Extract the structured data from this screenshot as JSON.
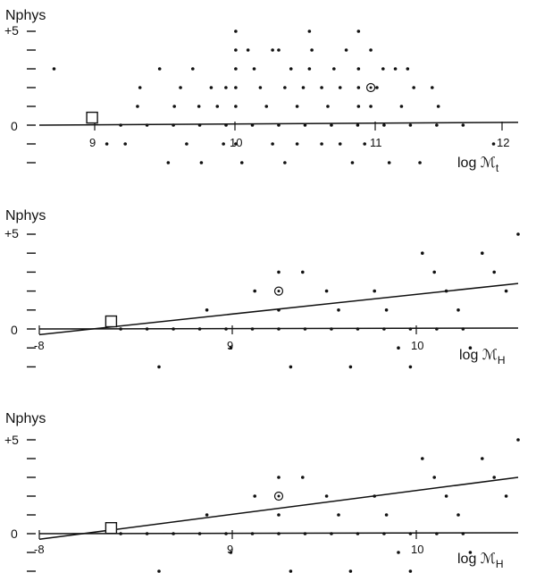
{
  "chart_data": [
    {
      "type": "scatter",
      "title": "",
      "ylabel": "Nphys",
      "xlabel": "log ℳ",
      "xlabel_sub": "t",
      "xlim": [
        8.4,
        12.3
      ],
      "ylim": [
        -2,
        5.5
      ],
      "y_ticks": [
        -2,
        -1,
        0,
        1,
        2,
        3,
        4,
        5
      ],
      "y_tick_labels": [
        "0",
        "+5"
      ],
      "x_tick_labels": [
        "9",
        "10",
        "11",
        "12"
      ],
      "grid": false,
      "fit_lines": [
        {
          "x": [
            8.4,
            12.3
          ],
          "y": [
            0,
            0.15
          ]
        }
      ],
      "points": [
        [
          8.52,
          3
        ],
        [
          8.95,
          -1
        ],
        [
          9.1,
          -1
        ],
        [
          9.22,
          2
        ],
        [
          9.2,
          1
        ],
        [
          9.38,
          3
        ],
        [
          9.45,
          -2
        ],
        [
          9.5,
          1
        ],
        [
          9.55,
          2
        ],
        [
          9.6,
          -1
        ],
        [
          9.65,
          3
        ],
        [
          9.7,
          1
        ],
        [
          9.72,
          -2
        ],
        [
          9.8,
          2
        ],
        [
          9.85,
          1
        ],
        [
          9.9,
          -1
        ],
        [
          9.92,
          2
        ],
        [
          10,
          5
        ],
        [
          10,
          4
        ],
        [
          10,
          3
        ],
        [
          10,
          2
        ],
        [
          10,
          1
        ],
        [
          10,
          -1
        ],
        [
          10.05,
          -2
        ],
        [
          10.1,
          4
        ],
        [
          10.15,
          3
        ],
        [
          10.2,
          2
        ],
        [
          10.25,
          1
        ],
        [
          10.3,
          -1
        ],
        [
          10.3,
          4
        ],
        [
          10.35,
          4
        ],
        [
          10.4,
          2
        ],
        [
          10.4,
          -2
        ],
        [
          10.45,
          3
        ],
        [
          10.5,
          1
        ],
        [
          10.5,
          -1
        ],
        [
          10.55,
          2
        ],
        [
          10.6,
          5
        ],
        [
          10.6,
          3
        ],
        [
          10.62,
          4
        ],
        [
          10.7,
          2
        ],
        [
          10.7,
          -1
        ],
        [
          10.75,
          1
        ],
        [
          10.8,
          3
        ],
        [
          10.85,
          2
        ],
        [
          10.85,
          -1
        ],
        [
          10.9,
          4
        ],
        [
          10.95,
          -2
        ],
        [
          11,
          5
        ],
        [
          11,
          3
        ],
        [
          11,
          1
        ],
        [
          11,
          2
        ],
        [
          11.05,
          -1
        ],
        [
          11.1,
          4
        ],
        [
          11.1,
          1
        ],
        [
          11.15,
          2
        ],
        [
          11.2,
          3
        ],
        [
          11.25,
          -2
        ],
        [
          11.3,
          3
        ],
        [
          11.35,
          1
        ],
        [
          11.4,
          3
        ],
        [
          11.45,
          2
        ],
        [
          11.5,
          -2
        ],
        [
          11.6,
          2
        ],
        [
          11.65,
          1
        ],
        [
          12.1,
          -1
        ]
      ],
      "point_y_ticks_hint": "integer counts",
      "special_points": [
        {
          "x": 8.83,
          "y": 0.4,
          "marker": "square"
        },
        {
          "x": 11.1,
          "y": 2,
          "marker": "circled-dot"
        }
      ]
    },
    {
      "type": "scatter",
      "title": "",
      "ylabel": "Nphys",
      "xlabel": "log ℳ",
      "xlabel_sub": "H",
      "xlim": [
        -8.0,
        -6.0
      ],
      "ylim": [
        -2,
        5.5
      ],
      "y_tick_labels": [
        "0",
        "+5"
      ],
      "x_tick_labels": [
        "-8",
        "9",
        "10"
      ],
      "grid": false,
      "fit_lines": [
        {
          "x": [
            -8.0,
            -6.0
          ],
          "y": [
            -0.3,
            2.4
          ]
        },
        {
          "x": [
            -8.0,
            -6.0
          ],
          "y": [
            0,
            0.05
          ]
        }
      ],
      "points": [
        [
          -7.5,
          -2
        ],
        [
          -7.3,
          1
        ],
        [
          -7.2,
          -1
        ],
        [
          -7.1,
          2
        ],
        [
          -7.0,
          3
        ],
        [
          -7.0,
          1
        ],
        [
          -6.95,
          -2
        ],
        [
          -6.9,
          3
        ],
        [
          -6.8,
          2
        ],
        [
          -6.75,
          1
        ],
        [
          -6.7,
          -2
        ],
        [
          -6.6,
          2
        ],
        [
          -6.55,
          1
        ],
        [
          -6.5,
          -1
        ],
        [
          -6.45,
          -2
        ],
        [
          -6.4,
          4
        ],
        [
          -6.35,
          3
        ],
        [
          -6.3,
          2
        ],
        [
          -6.25,
          1
        ],
        [
          -6.2,
          -1
        ],
        [
          -6.15,
          4
        ],
        [
          -6.1,
          3
        ],
        [
          -6.05,
          2
        ],
        [
          -6.0,
          5
        ]
      ],
      "special_points": [
        {
          "x": -7.7,
          "y": 0.4,
          "marker": "square"
        },
        {
          "x": -7.0,
          "y": 2,
          "marker": "circled-dot"
        }
      ]
    },
    {
      "type": "scatter",
      "title": "",
      "ylabel": "Nphys",
      "xlabel": "log ℳ",
      "xlabel_sub": "H",
      "xlim": [
        -8.0,
        -6.0
      ],
      "ylim": [
        -2,
        5.5
      ],
      "y_tick_labels": [
        "0",
        "+5"
      ],
      "x_tick_labels": [
        "-8",
        "9",
        "10"
      ],
      "grid": false,
      "fit_lines": [
        {
          "x": [
            -8.0,
            -6.0
          ],
          "y": [
            -0.3,
            3.0
          ]
        },
        {
          "x": [
            -8.0,
            -6.0
          ],
          "y": [
            0,
            0.05
          ]
        }
      ],
      "points": [
        [
          -7.5,
          -2
        ],
        [
          -7.3,
          1
        ],
        [
          -7.2,
          -1
        ],
        [
          -7.1,
          2
        ],
        [
          -7.0,
          3
        ],
        [
          -7.0,
          1
        ],
        [
          -6.95,
          -2
        ],
        [
          -6.9,
          3
        ],
        [
          -6.8,
          2
        ],
        [
          -6.75,
          1
        ],
        [
          -6.7,
          -2
        ],
        [
          -6.6,
          2
        ],
        [
          -6.55,
          1
        ],
        [
          -6.5,
          -1
        ],
        [
          -6.45,
          -2
        ],
        [
          -6.4,
          4
        ],
        [
          -6.35,
          3
        ],
        [
          -6.3,
          2
        ],
        [
          -6.25,
          1
        ],
        [
          -6.2,
          -1
        ],
        [
          -6.15,
          4
        ],
        [
          -6.1,
          3
        ],
        [
          -6.05,
          2
        ],
        [
          -6.0,
          5
        ]
      ],
      "special_points": [
        {
          "x": -7.7,
          "y": 0.3,
          "marker": "square"
        },
        {
          "x": -7.0,
          "y": 2,
          "marker": "circled-dot"
        }
      ]
    }
  ]
}
